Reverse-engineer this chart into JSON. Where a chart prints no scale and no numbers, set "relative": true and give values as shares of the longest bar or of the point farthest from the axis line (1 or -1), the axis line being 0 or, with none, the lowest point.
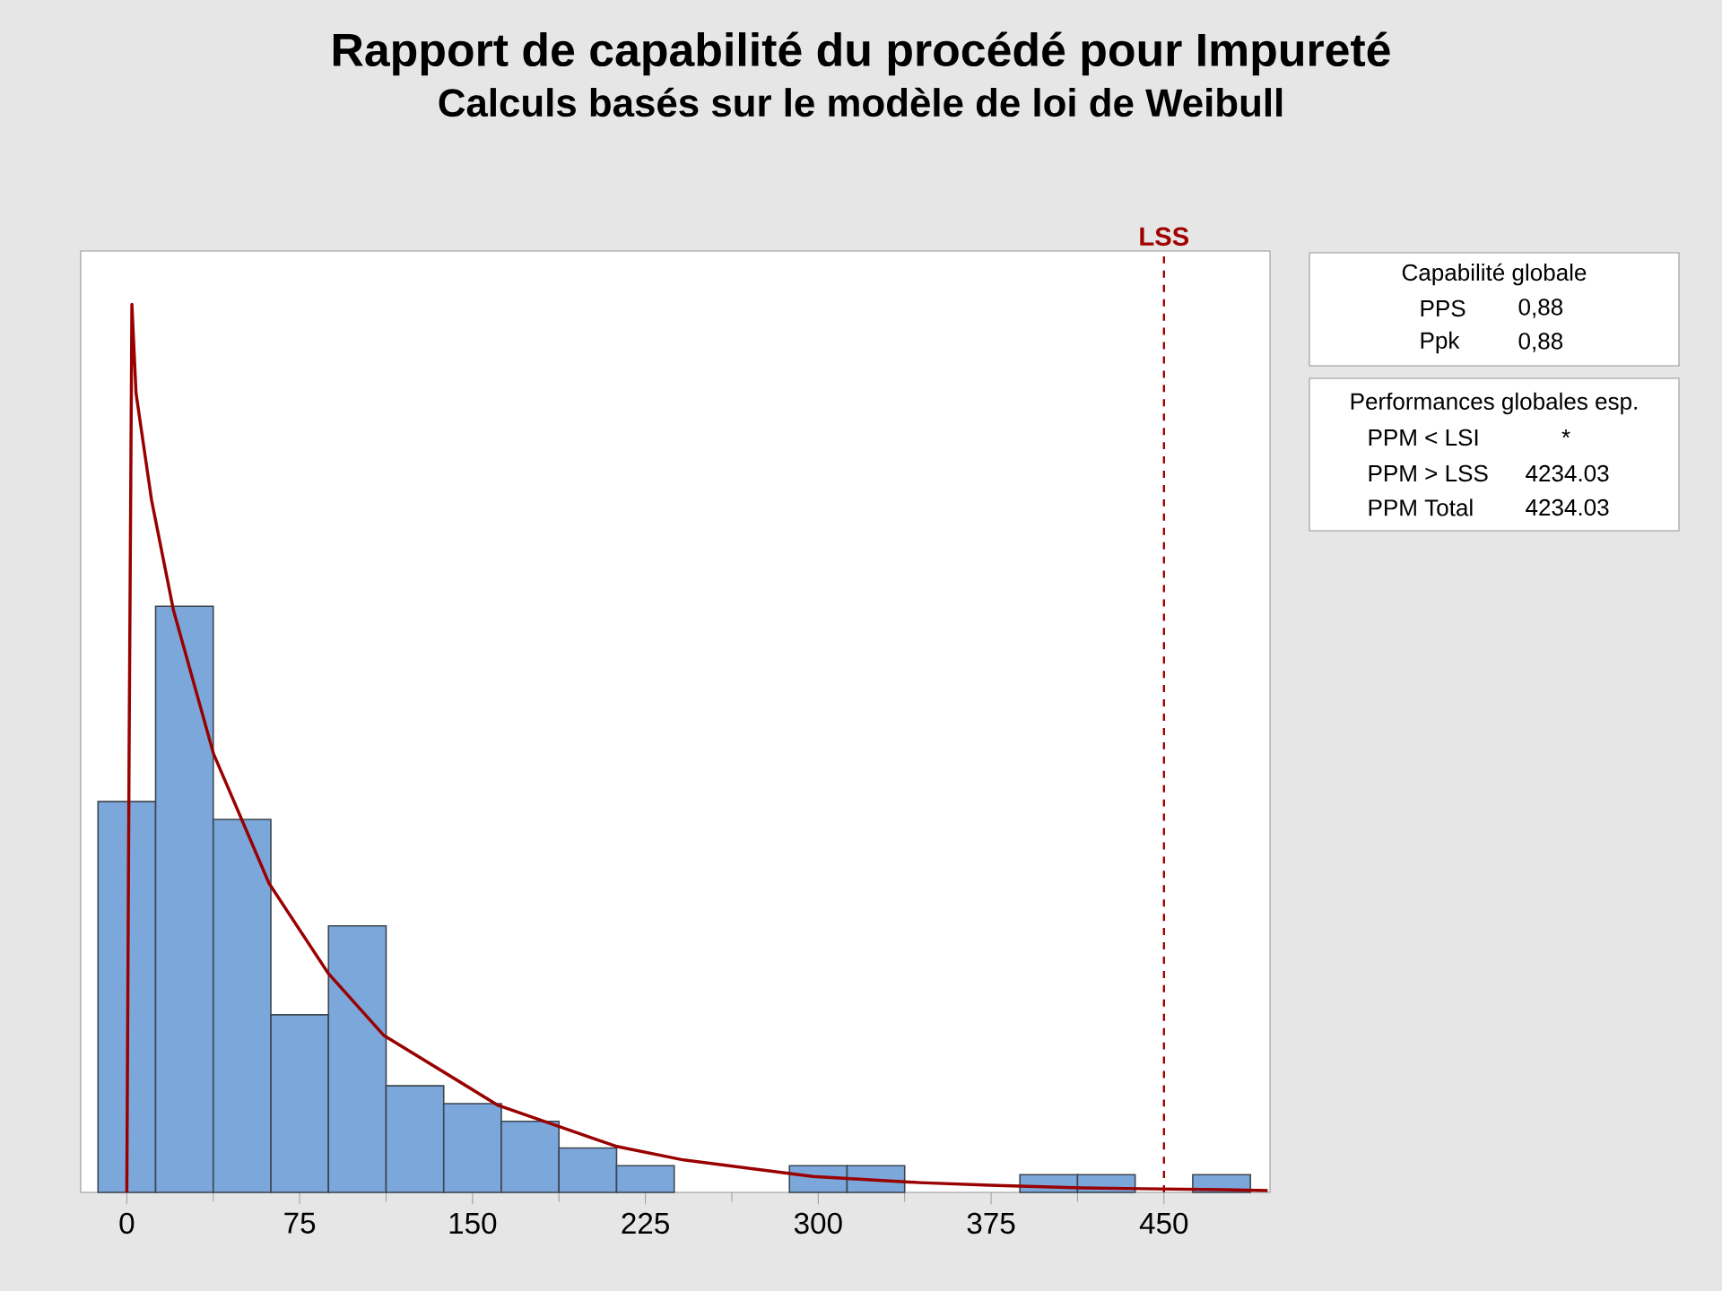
{
  "chart_data": {
    "type": "histogram",
    "title": "Rapport de capabilité du procédé pour Impureté",
    "subtitle": "Calculs basés sur le modèle de loi de Weibull",
    "relative": true,
    "bins": [
      -12.5,
      12.5,
      37.5,
      62.5,
      87.5,
      112.5,
      137.5,
      162.5,
      187.5,
      212.5,
      237.5,
      262.5,
      287.5,
      312.5,
      337.5,
      362.5,
      387.5,
      412.5,
      437.5,
      462.5,
      487.5
    ],
    "series": [
      {
        "color": "#7ba7db",
        "values": [
          0.44,
          0.66,
          0.42,
          0.2,
          0.3,
          0.12,
          0.1,
          0.08,
          0.05,
          0.03,
          0,
          0,
          0.03,
          0.03,
          0,
          0,
          0.02,
          0.02,
          0,
          0.02
        ]
      },
      {
        "type": "line",
        "color": "#990000",
        "x": [
          0,
          1,
          2.2,
          4,
          10.7,
          20.2,
          37.6,
          61.7,
          87.3,
          111.4,
          161.1,
          212.1,
          240.6,
          297.6,
          344,
          374.3,
          414,
          476,
          495
        ],
        "values": [
          0,
          0.5,
          1,
          0.9,
          0.78,
          0.656,
          0.494,
          0.348,
          0.247,
          0.177,
          0.098,
          0.052,
          0.037,
          0.018,
          0.011,
          0.008,
          0.005,
          0.003,
          0.002
        ]
      }
    ],
    "xlim": [
      -20,
      496
    ],
    "xticks": [
      0,
      75,
      150,
      225,
      300,
      375,
      450
    ],
    "ref_lines": [
      {
        "axis": "x",
        "value": 450,
        "label": "LSS",
        "color": "#a00000",
        "line_style": "dashed"
      }
    ],
    "annotations": [
      "Capabilité globale",
      "PPS",
      "0,88",
      "Ppk",
      "0,88",
      "Performances globales esp.",
      "PPM < LSI",
      "*",
      "PPM > LSS",
      "4234.03",
      "PPM Total",
      "4234.03"
    ]
  }
}
